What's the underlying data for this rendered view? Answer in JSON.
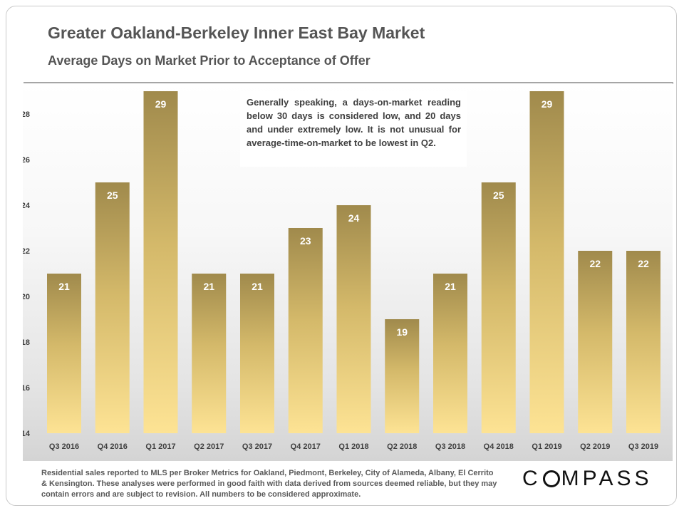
{
  "header": {
    "title": "Greater Oakland-Berkeley Inner East Bay Market",
    "subtitle": "Average Days on Market Prior to Acceptance of Offer"
  },
  "annotation": {
    "text": "Generally speaking, a days-on-market reading below 30 days is considered low, and 20 days and under extremely low. It is not unusual for average-time-on-market to be lowest in Q2."
  },
  "footer": {
    "text": "Residential sales reported to MLS per Broker Metrics for Oakland, Piedmont, Berkeley, City of Alameda, Albany, El Cerrito & Kensington. These analyses were performed in good faith with data derived from sources deemed reliable, but they may contain errors and are subject to revision. All numbers to be considered approximate.",
    "logo_before": "C",
    "logo_after": "MPASS"
  },
  "colors": {
    "bar_top": "#a08a4c",
    "bar_mid": "#d4b96a",
    "bar_bottom": "#fde394",
    "axis_text": "#404040",
    "label_text": "#ffffff"
  },
  "chart_data": {
    "type": "bar",
    "categories": [
      "Q3 2016",
      "Q4 2016",
      "Q1 2017",
      "Q2 2017",
      "Q3 2017",
      "Q4 2017",
      "Q1 2018",
      "Q2 2018",
      "Q3 2018",
      "Q4 2018",
      "Q1 2019",
      "Q2 2019",
      "Q3 2019"
    ],
    "values": [
      21,
      25,
      29,
      21,
      21,
      23,
      24,
      19,
      21,
      25,
      29,
      22,
      22
    ],
    "ylim": [
      14,
      29.6
    ],
    "yticks": [
      14,
      16,
      18,
      20,
      22,
      24,
      26,
      28
    ],
    "data_labels": true,
    "grid": false,
    "legend": "none"
  }
}
